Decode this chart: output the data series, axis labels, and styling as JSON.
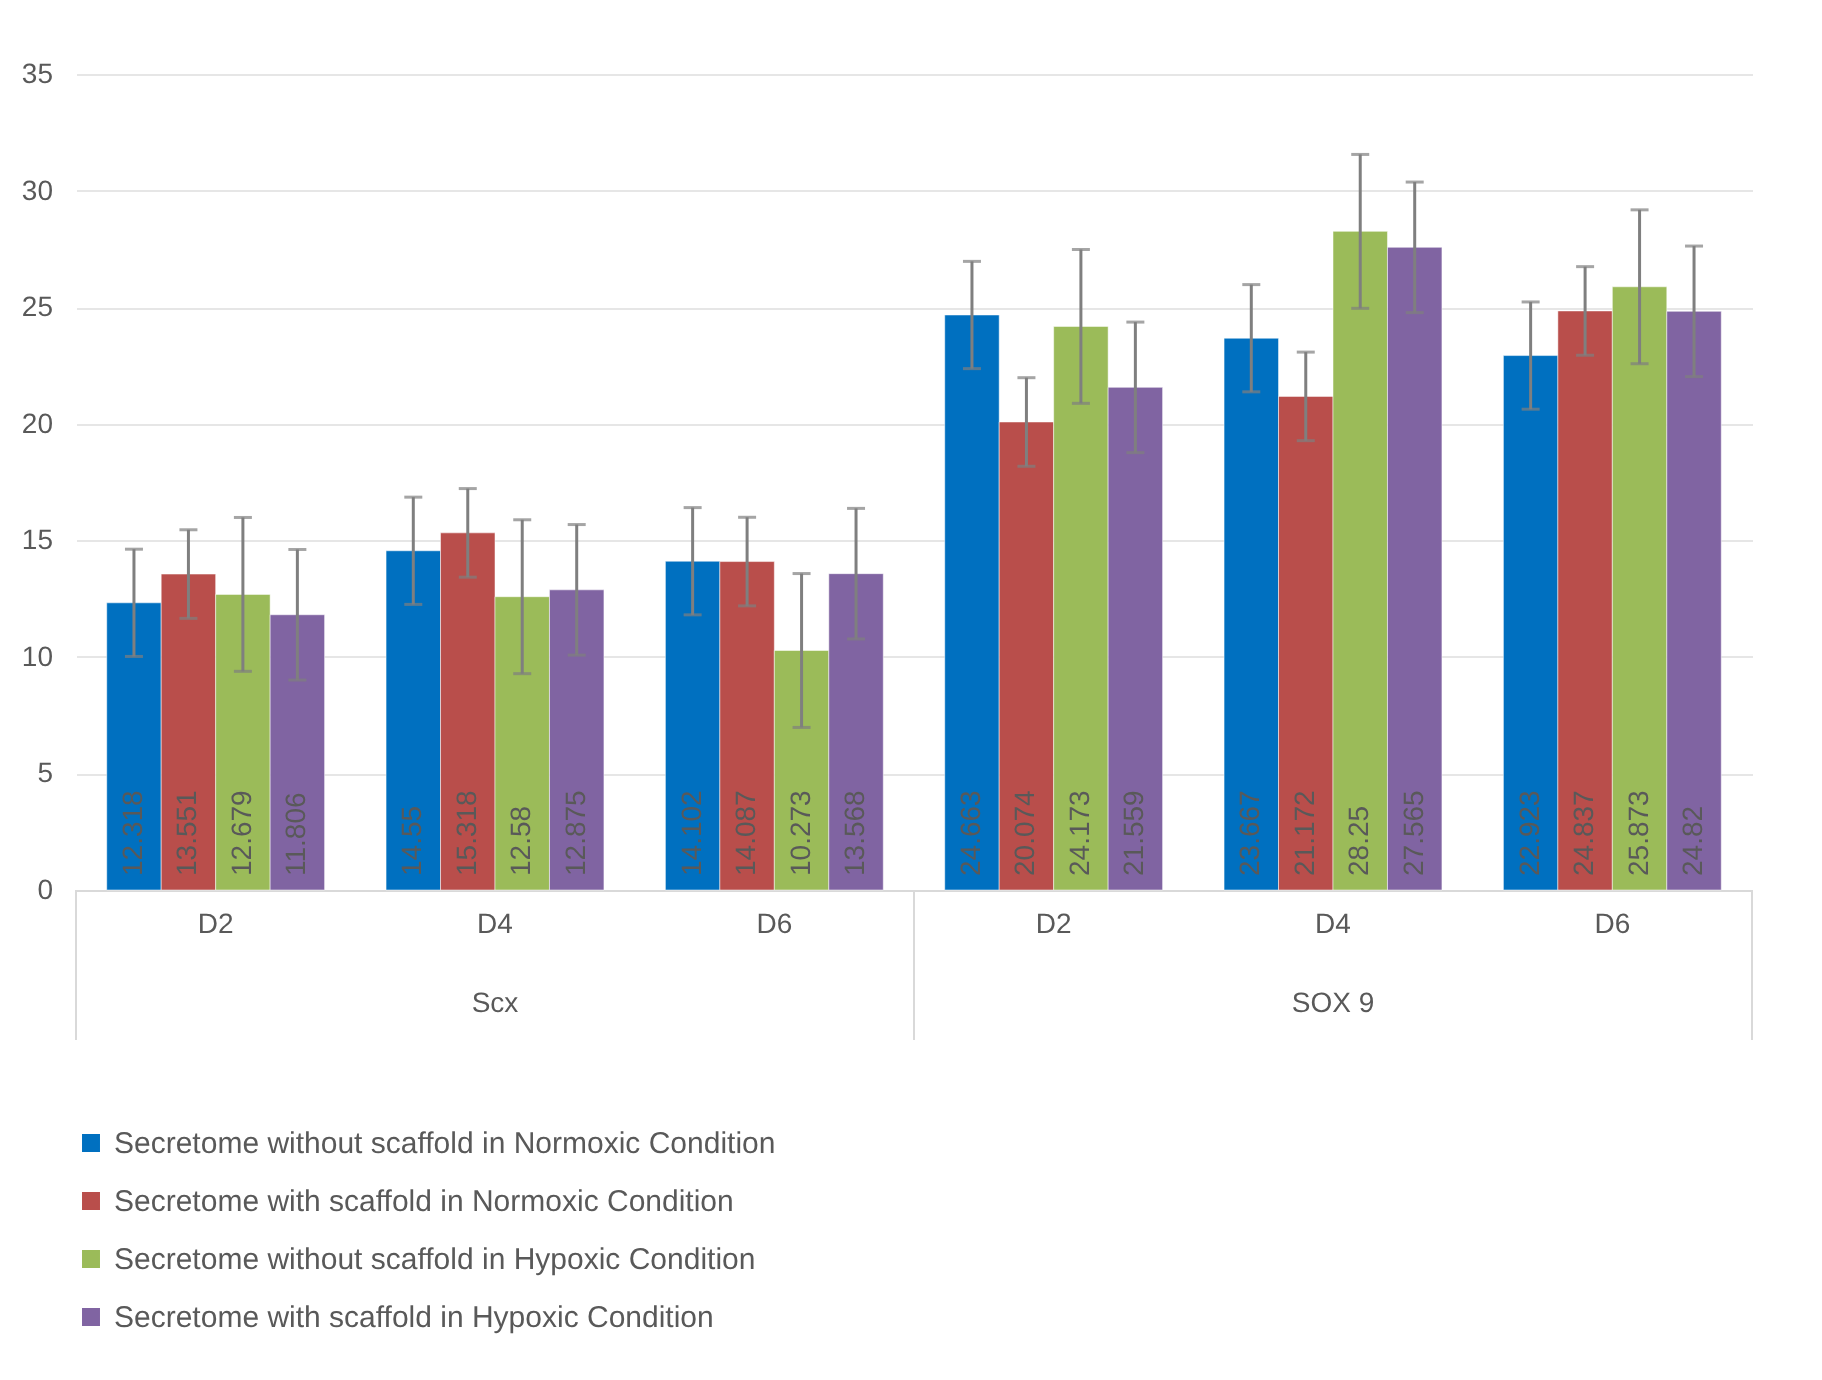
{
  "chart_data": {
    "type": "bar",
    "categories": [
      "D2",
      "D4",
      "D6",
      "D2",
      "D4",
      "D6"
    ],
    "annotations": [
      "Scx",
      "SOX 9"
    ],
    "series": [
      {
        "name": "Secretome without scaffold in Normoxic Condition",
        "color": "#0070c0",
        "values": [
          12.318,
          14.55,
          14.102,
          24.663,
          23.667,
          22.923
        ],
        "errors": [
          2.3,
          2.3,
          2.3,
          2.3,
          2.3,
          2.3
        ]
      },
      {
        "name": "Secretome with scaffold in Normoxic Condition",
        "color": "#b94e4b",
        "values": [
          13.551,
          15.318,
          14.087,
          20.074,
          21.172,
          24.837
        ],
        "errors": [
          1.9,
          1.9,
          1.9,
          1.9,
          1.9,
          1.9
        ]
      },
      {
        "name": "Secretome without scaffold in Hypoxic Condition",
        "color": "#9bbb59",
        "values": [
          12.679,
          12.58,
          10.273,
          24.173,
          28.25,
          25.873
        ],
        "errors": [
          3.3,
          3.3,
          3.3,
          3.3,
          3.3,
          3.3
        ]
      },
      {
        "name": "Secretome with scaffold in Hypoxic Condition",
        "color": "#8064a2",
        "values": [
          11.806,
          12.875,
          13.568,
          21.559,
          27.565,
          24.82
        ],
        "errors": [
          2.8,
          2.8,
          2.8,
          2.8,
          2.8,
          2.8
        ]
      }
    ],
    "ylim": [
      0,
      35
    ],
    "yticks": [
      0,
      5,
      10,
      15,
      20,
      25,
      30,
      35
    ],
    "grid": "y",
    "legend": "bottom",
    "data_labels": true
  }
}
